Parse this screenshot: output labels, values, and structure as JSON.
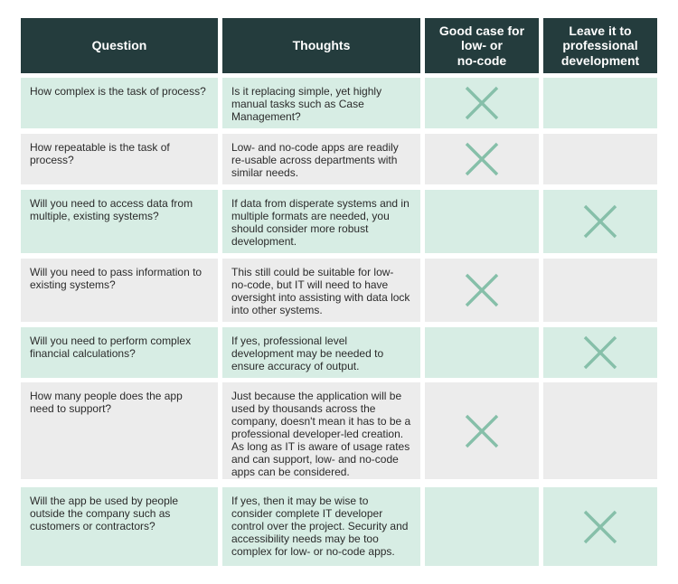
{
  "table": {
    "headers": {
      "question": "Question",
      "thoughts": "Thoughts",
      "good_case": "Good case for\nlow- or\nno-code",
      "professional": "Leave it to\nprofessional\ndevelopment"
    },
    "rows": [
      {
        "question": "How complex is the task of process?",
        "thoughts": "Is it replacing simple, yet highly manual tasks such as Case Management?",
        "mark": "good_case",
        "mark_icon": "x-mark-icon"
      },
      {
        "question": "How repeatable is the task of process?",
        "thoughts": "Low- and no-code apps are readily re-usable across departments with similar needs.",
        "mark": "good_case",
        "mark_icon": "x-mark-icon"
      },
      {
        "question": "Will you need to access data from multiple, existing systems?",
        "thoughts": "If data from disperate systems and in multiple formats are needed, you should consider more robust development.",
        "mark": "professional",
        "mark_icon": "x-mark-icon"
      },
      {
        "question": "Will you need to pass information to existing systems?",
        "thoughts": "This still could be suitable for low- no-code, but IT will need to have oversight into assisting with data lock into other systems.",
        "mark": "good_case",
        "mark_icon": "x-mark-icon"
      },
      {
        "question": "Will you need to perform complex financial calculations?",
        "thoughts": "If yes, professional level development may be needed to ensure accuracy of output.",
        "mark": "professional",
        "mark_icon": "x-mark-icon"
      },
      {
        "question": "How many people does the app need to support?",
        "thoughts": "Just because the application will be used by thousands across the company, doesn't mean it has to be a professional developer-led creation. As long as IT is aware of usage rates and can support, low- and no-code apps can be considered.",
        "mark": "good_case",
        "mark_icon": "x-mark-icon"
      },
      {
        "question": "Will the app be used by people outside the company such as customers or contractors?",
        "thoughts": "If yes, then it may be wise to consider complete IT developer control over the project. Security and accessibility needs may be too complex for low- or no-code apps.",
        "mark": "professional",
        "mark_icon": "x-mark-icon"
      }
    ]
  },
  "colors": {
    "header_bg": "#243c3d",
    "header_text": "#ffffff",
    "row_green": "#d7ede4",
    "row_grey": "#ececec",
    "mark": "#86bfa9"
  }
}
